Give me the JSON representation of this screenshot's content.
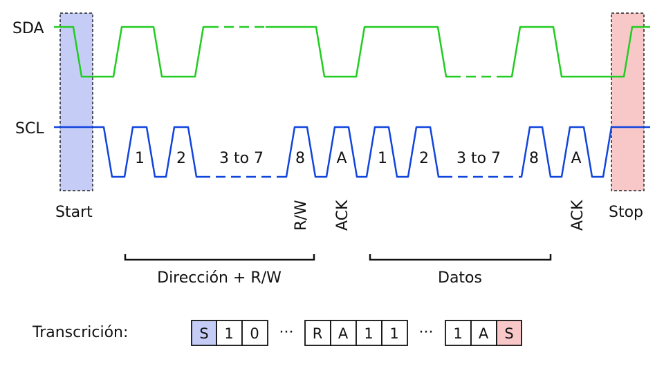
{
  "signals": {
    "sda_label": "SDA",
    "scl_label": "SCL"
  },
  "pulses": [
    "1",
    "2",
    "3 to 7",
    "8",
    "A",
    "1",
    "2",
    "3 to 7",
    "8",
    "A"
  ],
  "markers": {
    "start": "Start",
    "stop": "Stop",
    "rw": "R/W",
    "ack1": "ACK",
    "ack2": "ACK"
  },
  "groups": {
    "address": "Dirección + R/W",
    "data": "Datos"
  },
  "transcription": {
    "label": "Transcrición:",
    "ellipsis": "···",
    "group1": [
      "S",
      "1",
      "0"
    ],
    "group2": [
      "R",
      "A",
      "1",
      "1"
    ],
    "group3": [
      "1",
      "A",
      "S"
    ]
  },
  "colors": {
    "sda": "#22cc22",
    "scl": "#1144dd",
    "start_fill": "#c5cdf7",
    "stop_fill": "#f8c8c8"
  }
}
